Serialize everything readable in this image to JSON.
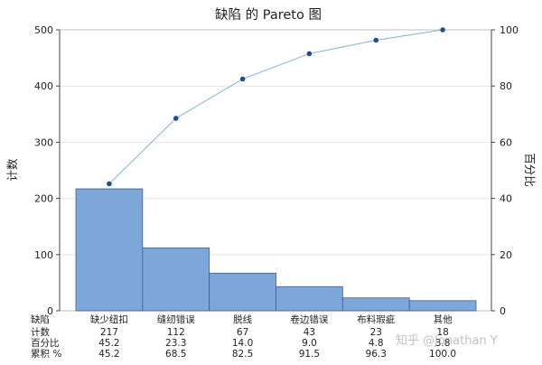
{
  "chart_data": {
    "type": "bar",
    "title": "缺陷 的 Pareto 图",
    "ylabel": "计数",
    "y2label": "百分比",
    "ylim": [
      0,
      500
    ],
    "y2lim": [
      0,
      100
    ],
    "yticks": [
      0,
      100,
      200,
      300,
      400,
      500
    ],
    "y2ticks": [
      0,
      20,
      40,
      60,
      80,
      100
    ],
    "categories": [
      "缺少纽扣",
      "缝纫错误",
      "脱线",
      "卷边错误",
      "布料瑕疵",
      "其他"
    ],
    "series": [
      {
        "type": "bar",
        "values": [
          217,
          112,
          67,
          43,
          23,
          18
        ]
      },
      {
        "type": "line",
        "axis": "right",
        "values": [
          45.2,
          68.5,
          82.5,
          91.5,
          96.3,
          100.0
        ]
      }
    ],
    "colors": {
      "bar": "#7da7d9",
      "bar_edge": "#3f5f8a",
      "line": "#7fb2d8",
      "marker": "#1f4e8c",
      "grid": "#e6e6e6"
    },
    "table": {
      "row_labels": [
        "缺陷",
        "计数",
        "百分比",
        "累积 %"
      ],
      "counts": [
        "217",
        "112",
        "67",
        "43",
        "23",
        "18"
      ],
      "percents": [
        "45.2",
        "23.3",
        "14.0",
        "9.0",
        "4.8",
        "3.8"
      ],
      "cumulative": [
        "45.2",
        "68.5",
        "82.5",
        "91.5",
        "96.3",
        "100.0"
      ]
    }
  },
  "watermark": "知乎 @Jonathan Y"
}
